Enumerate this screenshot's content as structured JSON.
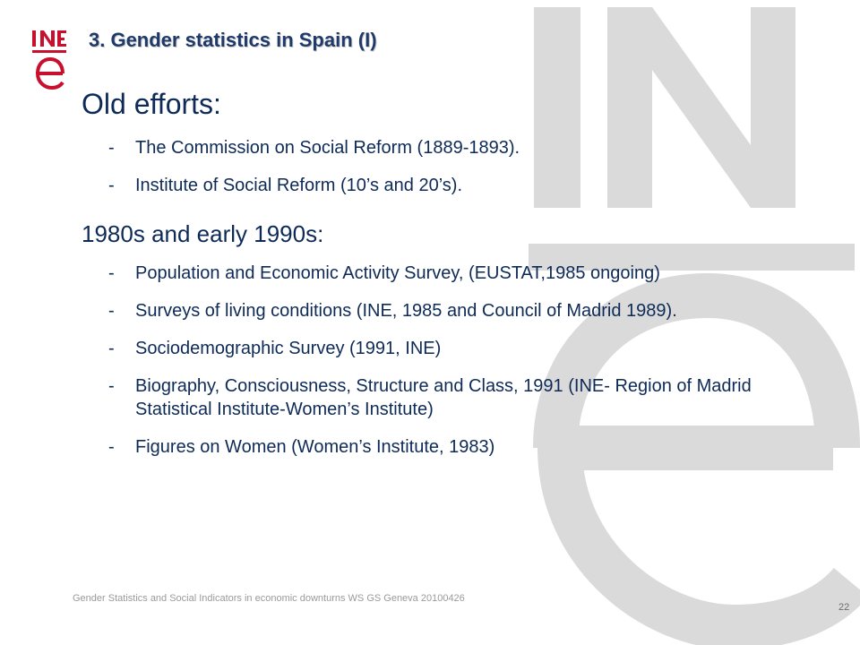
{
  "slide": {
    "title": "3. Gender statistics in Spain (I)",
    "logo": "INE-logo",
    "watermark": "INE-watermark-logo",
    "sections": [
      {
        "heading": "Old efforts:",
        "items": [
          "The Commission on Social Reform (1889-1893).",
          "Institute of Social Reform (10’s and 20’s)."
        ]
      },
      {
        "heading": "1980s and early 1990s:",
        "items": [
          "Population and Economic Activity Survey, (EUSTAT,1985 ongoing)",
          "Surveys of living conditions (INE, 1985 and Council of Madrid 1989).",
          "Sociodemographic Survey (1991, INE)",
          "Biography, Consciousness, Structure and Class, 1991 (INE- Region of Madrid Statistical Institute-Women’s Institute)",
          "Figures on Women (Women’s Institute, 1983)"
        ]
      }
    ],
    "bullet": "-",
    "footer": "Gender Statistics and Social Indicators in economic downturns WS GS Geneva 20100426",
    "page_number": "22",
    "colors": {
      "text": "#0e2a57",
      "logo_red": "#c8102e",
      "watermark": "#d9d9d9"
    }
  }
}
